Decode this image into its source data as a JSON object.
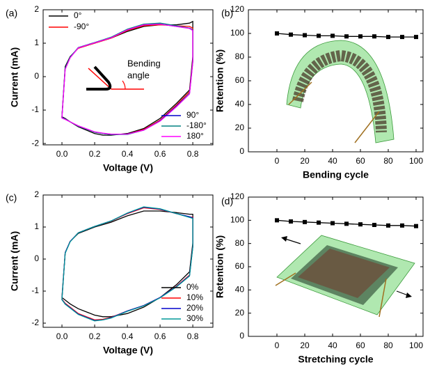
{
  "chart_data": [
    {
      "type": "line",
      "label": "(a)",
      "xlabel": "Voltage (V)",
      "ylabel": "Current (mA)",
      "xlim": [
        -0.115,
        0.923
      ],
      "ylim": [
        -2.04,
        2
      ],
      "xticks": [
        {
          "value": 0,
          "label": "0.0"
        },
        0.2,
        0.4,
        0.6,
        0.8
      ],
      "yticks": [
        -2,
        -1,
        0,
        1,
        2
      ],
      "closed": true,
      "annotation": [
        "Bending",
        "angle"
      ],
      "x": [
        0,
        0.02,
        0.05,
        0.1,
        0.2,
        0.3,
        0.4,
        0.5,
        0.6,
        0.7,
        0.78,
        0.8,
        0.8,
        0.78,
        0.7,
        0.6,
        0.5,
        0.4,
        0.3,
        0.25,
        0.2,
        0.1,
        0.05,
        0.02,
        0
      ],
      "series": [
        {
          "name": "0°",
          "color": "#000000",
          "legend": "upper left",
          "values": [
            -1.2,
            0.3,
            0.6,
            0.85,
            1.0,
            1.15,
            1.35,
            1.5,
            1.55,
            1.55,
            1.6,
            1.65,
            0.6,
            -0.4,
            -0.8,
            -1.25,
            -1.55,
            -1.7,
            -1.75,
            -1.75,
            -1.7,
            -1.5,
            -1.35,
            -1.25,
            -1.2
          ]
        },
        {
          "name": "-90°",
          "color": "#ff0000",
          "legend": "upper left",
          "values": [
            -1.22,
            0.25,
            0.58,
            0.85,
            1.0,
            1.15,
            1.38,
            1.52,
            1.55,
            1.52,
            1.5,
            1.45,
            0.5,
            -0.45,
            -0.85,
            -1.3,
            -1.58,
            -1.72,
            -1.72,
            -1.7,
            -1.66,
            -1.48,
            -1.35,
            -1.27,
            -1.22
          ]
        },
        {
          "name": "90°",
          "color": "#0000cc",
          "legend": "lower right",
          "values": [
            -1.22,
            0.25,
            0.58,
            0.87,
            1.02,
            1.17,
            1.4,
            1.55,
            1.57,
            1.5,
            1.45,
            1.4,
            0.45,
            -0.5,
            -0.88,
            -1.32,
            -1.6,
            -1.72,
            -1.73,
            -1.7,
            -1.66,
            -1.48,
            -1.35,
            -1.27,
            -1.22
          ]
        },
        {
          "name": "-180°",
          "color": "#008080",
          "legend": "lower right",
          "values": [
            -1.23,
            0.25,
            0.58,
            0.87,
            1.02,
            1.18,
            1.42,
            1.57,
            1.6,
            1.52,
            1.45,
            1.4,
            0.45,
            -0.5,
            -0.9,
            -1.33,
            -1.6,
            -1.73,
            -1.73,
            -1.7,
            -1.66,
            -1.48,
            -1.35,
            -1.27,
            -1.23
          ]
        },
        {
          "name": "180°",
          "color": "#ff00ff",
          "legend": "lower right",
          "values": [
            -1.24,
            0.22,
            0.56,
            0.86,
            1.01,
            1.16,
            1.4,
            1.55,
            1.57,
            1.5,
            1.44,
            1.38,
            0.42,
            -0.52,
            -0.9,
            -1.33,
            -1.6,
            -1.72,
            -1.72,
            -1.69,
            -1.65,
            -1.47,
            -1.35,
            -1.28,
            -1.24
          ]
        }
      ]
    },
    {
      "type": "line",
      "label": "(b)",
      "xlabel": "Bending cycle",
      "ylabel": "Retention (%)",
      "xlim": [
        -20.5,
        105
      ],
      "ylim": [
        0,
        120
      ],
      "xticks": [
        0,
        20,
        40,
        60,
        80,
        100
      ],
      "yticks": [
        0,
        20,
        40,
        60,
        80,
        100,
        120
      ],
      "color": "#000000",
      "marker": "square",
      "x": [
        0,
        10,
        20,
        30,
        40,
        50,
        60,
        70,
        80,
        90,
        100
      ],
      "values": [
        100,
        99,
        98.5,
        98,
        98,
        97.5,
        97.5,
        97.5,
        97,
        97,
        97
      ]
    },
    {
      "type": "line",
      "label": "(c)",
      "xlabel": "Voltage (V)",
      "ylabel": "Current (mA)",
      "xlim": [
        -0.115,
        0.923
      ],
      "ylim": [
        -2.13,
        2
      ],
      "xticks": [
        {
          "value": 0,
          "label": "0.0"
        },
        0.2,
        0.4,
        0.6,
        0.8
      ],
      "yticks": [
        -2,
        -1,
        0,
        1,
        2
      ],
      "closed": true,
      "x": [
        0,
        0.02,
        0.05,
        0.1,
        0.2,
        0.3,
        0.4,
        0.5,
        0.6,
        0.7,
        0.78,
        0.8,
        0.8,
        0.78,
        0.7,
        0.6,
        0.5,
        0.4,
        0.3,
        0.25,
        0.2,
        0.1,
        0.05,
        0.02,
        0
      ],
      "series": [
        {
          "name": "0%",
          "color": "#000000",
          "legend": "lower right",
          "values": [
            -1.2,
            0.2,
            0.55,
            0.8,
            1.0,
            1.15,
            1.35,
            1.5,
            1.5,
            1.45,
            1.4,
            1.4,
            0.5,
            -0.4,
            -0.8,
            -1.2,
            -1.5,
            -1.7,
            -1.8,
            -1.8,
            -1.75,
            -1.55,
            -1.4,
            -1.28,
            -1.2
          ]
        },
        {
          "name": "10%",
          "color": "#ff0000",
          "legend": "lower right",
          "values": [
            -1.25,
            0.2,
            0.55,
            0.82,
            1.02,
            1.18,
            1.42,
            1.6,
            1.55,
            1.42,
            1.32,
            1.3,
            0.4,
            -0.5,
            -0.85,
            -1.2,
            -1.45,
            -1.62,
            -1.82,
            -1.88,
            -1.9,
            -1.7,
            -1.5,
            -1.38,
            -1.25
          ]
        },
        {
          "name": "20%",
          "color": "#0000cc",
          "legend": "lower right",
          "values": [
            -1.26,
            0.2,
            0.55,
            0.82,
            1.02,
            1.19,
            1.43,
            1.62,
            1.56,
            1.42,
            1.32,
            1.28,
            0.38,
            -0.52,
            -0.86,
            -1.2,
            -1.45,
            -1.62,
            -1.83,
            -1.9,
            -1.92,
            -1.72,
            -1.52,
            -1.4,
            -1.26
          ]
        },
        {
          "name": "30%",
          "color": "#009999",
          "legend": "lower right",
          "values": [
            -1.27,
            0.18,
            0.54,
            0.82,
            1.02,
            1.19,
            1.44,
            1.63,
            1.57,
            1.42,
            1.3,
            1.27,
            0.36,
            -0.53,
            -0.87,
            -1.21,
            -1.46,
            -1.63,
            -1.84,
            -1.9,
            -1.93,
            -1.73,
            -1.53,
            -1.41,
            -1.27
          ]
        }
      ]
    },
    {
      "type": "line",
      "label": "(d)",
      "xlabel": "Stretching cycle",
      "ylabel": "Retention (%)",
      "xlim": [
        -20.5,
        105
      ],
      "ylim": [
        0,
        120
      ],
      "xticks": [
        0,
        20,
        40,
        60,
        80,
        100
      ],
      "yticks": [
        0,
        20,
        40,
        60,
        80,
        100,
        120
      ],
      "color": "#000000",
      "marker": "square",
      "x": [
        0,
        10,
        20,
        30,
        40,
        50,
        60,
        70,
        80,
        90,
        100
      ],
      "values": [
        100,
        99,
        98.5,
        98,
        97.5,
        97,
        96.5,
        96,
        95.5,
        95.5,
        95
      ]
    }
  ]
}
